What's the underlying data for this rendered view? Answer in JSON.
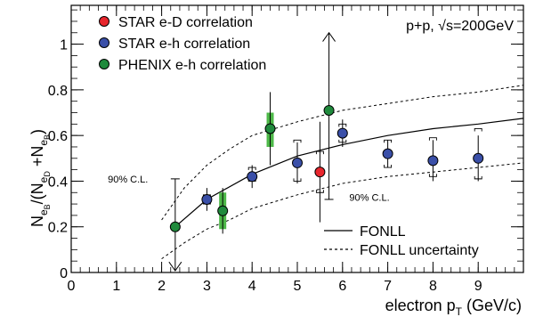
{
  "chart_data": {
    "type": "scatter",
    "title": "",
    "annotation_top_right": "p+p, √s=200GeV",
    "xlabel": "electron p",
    "xlabel_sub": "T",
    "xlabel_unit": " (GeV/c)",
    "ylabel_parts": {
      "n1": "N",
      "sub_eb": "e",
      "sub_b": "B",
      "slash": "/(N",
      "sub_ed": "e",
      "sub_d": "D",
      "plus": " +N",
      "sub_eb2": "e",
      "sub_b2": "B",
      "close": ")"
    },
    "xlim": [
      0,
      10
    ],
    "ylim": [
      0,
      1.17
    ],
    "xticks": [
      {
        "value": 0,
        "label": "0"
      },
      {
        "value": 1,
        "label": "1"
      },
      {
        "value": 2,
        "label": "2"
      },
      {
        "value": 3,
        "label": "3"
      },
      {
        "value": 4,
        "label": "4"
      },
      {
        "value": 5,
        "label": "5"
      },
      {
        "value": 6,
        "label": "6"
      },
      {
        "value": 7,
        "label": "7"
      },
      {
        "value": 8,
        "label": "8"
      },
      {
        "value": 9,
        "label": "9"
      }
    ],
    "yticks": [
      {
        "value": 0,
        "label": "0"
      },
      {
        "value": 0.2,
        "label": "0.2"
      },
      {
        "value": 0.4,
        "label": "0.4"
      },
      {
        "value": 0.6,
        "label": "0.6"
      },
      {
        "value": 0.8,
        "label": "0.8"
      },
      {
        "value": 1.0,
        "label": "1"
      }
    ],
    "legend_top_left": [
      {
        "name": "STAR e-D correlation",
        "color": "#e8262d"
      },
      {
        "name": "STAR e-h correlation",
        "color": "#3a4fa8"
      },
      {
        "name": "PHENIX e-h correlation",
        "color": "#1f8a3c"
      }
    ],
    "legend_bottom_right": [
      {
        "name": "FONLL",
        "style": "solid"
      },
      {
        "name": "FONLL uncertainty",
        "style": "dashed"
      }
    ],
    "annotations": [
      {
        "text": "90% C.L.",
        "x": 1.7,
        "y": 0.41
      },
      {
        "text": "90% C.L.",
        "x": 6.15,
        "y": 0.33
      }
    ],
    "series": [
      {
        "name": "STAR e-h correlation",
        "color": "#3a4fa8",
        "points": [
          {
            "x": 3.0,
            "y": 0.32,
            "stat": [
              0.27,
              0.37
            ],
            "sys": [
              0.3,
              0.34
            ]
          },
          {
            "x": 4.0,
            "y": 0.42,
            "stat": [
              0.37,
              0.47
            ],
            "sys": [
              0.4,
              0.46
            ]
          },
          {
            "x": 5.0,
            "y": 0.48,
            "stat": [
              0.39,
              0.57
            ],
            "sys": [
              0.4,
              0.58
            ]
          },
          {
            "x": 6.0,
            "y": 0.61,
            "stat": [
              0.55,
              0.67
            ],
            "sys": [
              0.57,
              0.65
            ]
          },
          {
            "x": 7.0,
            "y": 0.52,
            "stat": [
              0.46,
              0.58
            ],
            "sys": [
              0.46,
              0.58
            ]
          },
          {
            "x": 8.0,
            "y": 0.49,
            "stat": [
              0.4,
              0.58
            ],
            "sys": [
              0.42,
              0.59
            ]
          },
          {
            "x": 9.0,
            "y": 0.5,
            "stat": [
              0.4,
              0.6
            ],
            "sys": [
              0.41,
              0.63
            ]
          }
        ]
      },
      {
        "name": "STAR e-D correlation",
        "color": "#e8262d",
        "points": [
          {
            "x": 5.5,
            "y": 0.44,
            "stat": [
              0.22,
              0.66
            ],
            "sys": [
              0.35,
              0.53
            ]
          }
        ]
      },
      {
        "name": "PHENIX e-h correlation",
        "color": "#1f8a3c",
        "points": [
          {
            "x": 2.3,
            "y": 0.2,
            "stat_upper_limit": 0.41,
            "lower_arrow": true,
            "band": null
          },
          {
            "x": 3.35,
            "y": 0.27,
            "stat": [
              0.17,
              0.37
            ],
            "band": [
              0.19,
              0.35
            ]
          },
          {
            "x": 4.4,
            "y": 0.63,
            "stat": [
              0.47,
              0.79
            ],
            "band": [
              0.55,
              0.7
            ]
          },
          {
            "x": 5.7,
            "y": 0.71,
            "stat_lower": 0.32,
            "upper_arrow": true,
            "band": null
          }
        ]
      }
    ],
    "fonll": {
      "central": {
        "x": [
          2.3,
          3.0,
          4.0,
          5.0,
          6.0,
          7.0,
          8.0,
          9.0,
          10.0
        ],
        "y": [
          0.2,
          0.32,
          0.43,
          0.51,
          0.56,
          0.6,
          0.63,
          0.65,
          0.675
        ]
      },
      "upper": {
        "x": [
          2.0,
          2.5,
          3.0,
          3.5,
          4.0,
          5.0,
          6.0,
          7.0,
          8.0,
          9.0,
          10.0
        ],
        "y": [
          0.23,
          0.37,
          0.47,
          0.54,
          0.6,
          0.66,
          0.71,
          0.74,
          0.77,
          0.79,
          0.82
        ]
      },
      "lower": {
        "x": [
          2.0,
          2.5,
          3.0,
          3.5,
          4.0,
          5.0,
          6.0,
          7.0,
          8.0,
          9.0,
          10.0
        ],
        "y": [
          0.06,
          0.13,
          0.19,
          0.23,
          0.28,
          0.34,
          0.39,
          0.42,
          0.44,
          0.46,
          0.48
        ]
      }
    },
    "grid": false,
    "legend_position": "top-left"
  }
}
